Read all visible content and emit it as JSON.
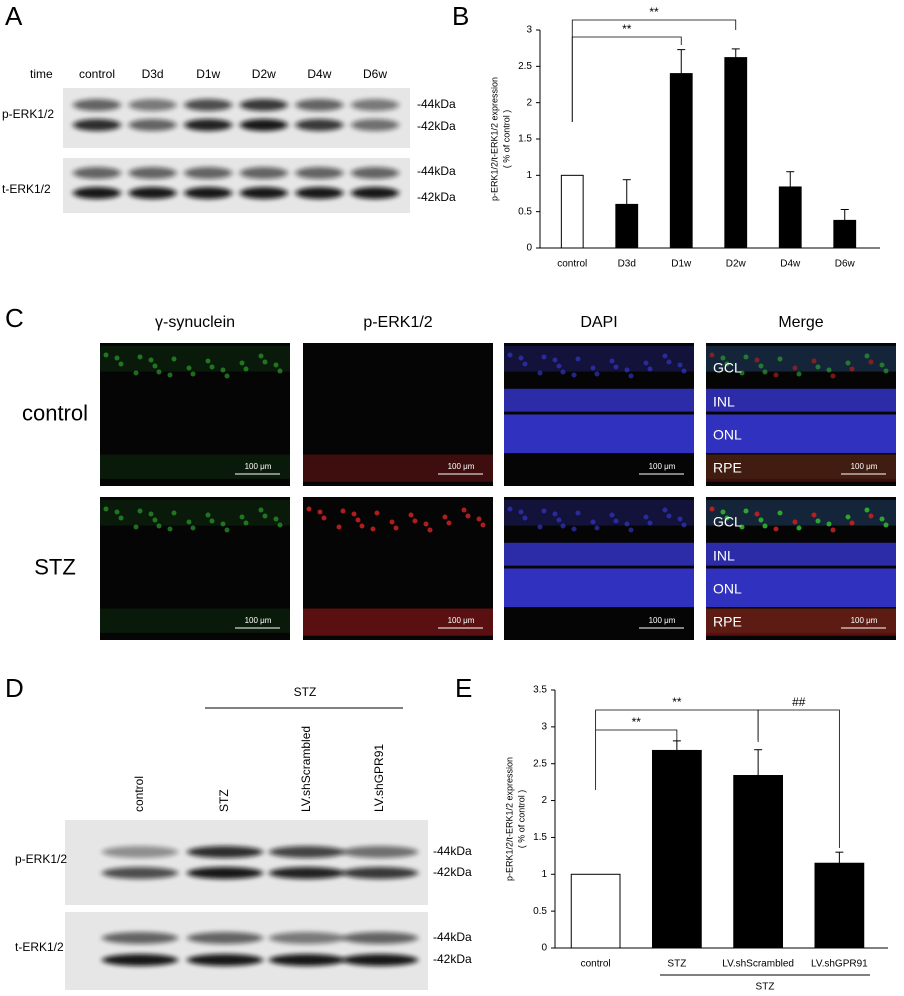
{
  "panels": {
    "A": {
      "label": "A",
      "time_label": "time",
      "lanes": [
        "control",
        "D3d",
        "D1w",
        "D2w",
        "D4w",
        "D6w"
      ],
      "blots": [
        {
          "name": "p-ERK1/2",
          "markers": [
            "-44kDa",
            "-42kDa"
          ]
        },
        {
          "name": "t-ERK1/2",
          "markers": [
            "-44kDa",
            "-42kDa"
          ]
        }
      ]
    },
    "C": {
      "label": "C",
      "channels": [
        "γ-synuclein",
        "p-ERK1/2",
        "DAPI",
        "Merge"
      ],
      "rows": [
        "control",
        "STZ"
      ],
      "scale_bar": "100 μm",
      "layers": [
        "GCL",
        "INL",
        "ONL",
        "RPE"
      ]
    },
    "D": {
      "label": "D",
      "group": "STZ",
      "lanes": [
        "control",
        "STZ",
        "LV.shScrambled",
        "LV.shGPR91"
      ],
      "blots": [
        {
          "name": "p-ERK1/2",
          "markers": [
            "-44kDa",
            "-42kDa"
          ]
        },
        {
          "name": "t-ERK1/2",
          "markers": [
            "-44kDa",
            "-42kDa"
          ]
        }
      ]
    }
  },
  "chart_data": [
    {
      "type": "bar",
      "panel_label": "B",
      "ylabel": "p-ERK1/2/t-ERK1/2 expression",
      "ylabel_note": "( % of control )",
      "categories": [
        "control",
        "D3d",
        "D1w",
        "D2w",
        "D4w",
        "D6w"
      ],
      "values": [
        1,
        0.6,
        2.4,
        2.62,
        0.84,
        0.38
      ],
      "errors": [
        0,
        0.34,
        0.33,
        0.12,
        0.21,
        0.15
      ],
      "colors": [
        "#ffffff",
        "#000000",
        "#000000",
        "#000000",
        "#000000",
        "#000000"
      ],
      "ylim": [
        0,
        3
      ],
      "yticks": [
        0,
        0.5,
        1,
        1.5,
        2,
        2.5,
        3
      ],
      "significance": [
        {
          "label": "**",
          "from": 0,
          "to": 2
        },
        {
          "label": "**",
          "from": 0,
          "to": 3
        }
      ]
    },
    {
      "type": "bar",
      "panel_label": "E",
      "ylabel": "p-ERK1/2/t-ERK1/2 expression",
      "ylabel_note": "( % of control )",
      "categories": [
        "control",
        "STZ",
        "LV.shScrambled",
        "LV.shGPR91"
      ],
      "values": [
        1,
        2.68,
        2.34,
        1.15
      ],
      "errors": [
        0,
        0.13,
        0.35,
        0.15
      ],
      "colors": [
        "#ffffff",
        "#000000",
        "#000000",
        "#000000"
      ],
      "ylim": [
        0,
        3.5
      ],
      "yticks": [
        0,
        0.5,
        1,
        1.5,
        2,
        2.5,
        3,
        3.5
      ],
      "group_label": "STZ",
      "significance": [
        {
          "label": "**",
          "from": 0,
          "to": 1
        },
        {
          "label": "**",
          "from": 0,
          "to": 2
        },
        {
          "label": "##",
          "from": 2,
          "to": 3
        }
      ]
    }
  ]
}
